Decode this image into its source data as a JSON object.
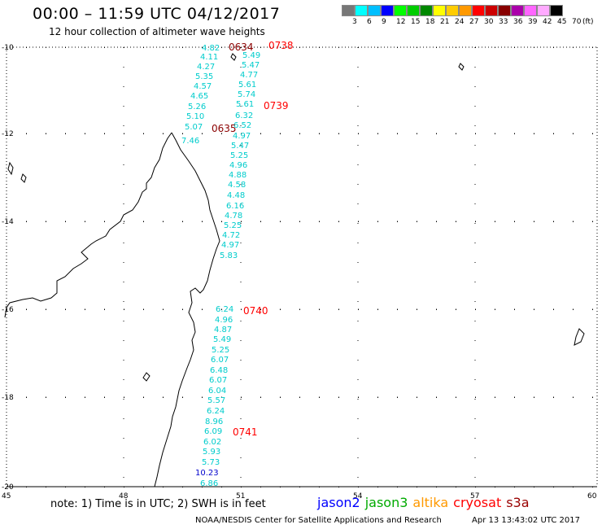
{
  "header": {
    "title": "00:00 – 11:59 UTC 04/12/2017",
    "subtitle": "12 hour collection of altimeter wave heights"
  },
  "legend": {
    "colors": [
      "#777777",
      "#00ffff",
      "#00bfff",
      "#0000ff",
      "#00ff00",
      "#00cc00",
      "#008800",
      "#ffff00",
      "#ffcc00",
      "#ff9900",
      "#ff0000",
      "#cc0000",
      "#880000",
      "#aa00aa",
      "#ff66ff",
      "#ffaaff",
      "#000000"
    ],
    "labels": [
      "3",
      "6",
      "9",
      "12",
      "15",
      "18",
      "21",
      "24",
      "27",
      "30",
      "33",
      "36",
      "39",
      "42",
      "45",
      "70",
      "(ft)"
    ]
  },
  "axes": {
    "x_labels": [
      "45",
      "48",
      "51",
      "54",
      "57",
      "60"
    ],
    "y_labels": [
      "-10",
      "-12",
      "-14",
      "-16",
      "-18",
      "-20"
    ]
  },
  "time_labels": [
    {
      "text": "0634",
      "color": "#8b0000"
    },
    {
      "text": "0738",
      "color": "#ff0000"
    },
    {
      "text": "0739",
      "color": "#ff0000"
    },
    {
      "text": "0635",
      "color": "#8b0000"
    },
    {
      "text": "0740",
      "color": "#ff0000"
    },
    {
      "text": "0741",
      "color": "#ff0000"
    }
  ],
  "track_west": [
    "4.82",
    "4.11",
    "4.27",
    "5.35",
    "4.57",
    "4.65",
    "5.26",
    "5.10",
    "5.07",
    "7.46"
  ],
  "track_east": [
    "5.49",
    "5.47",
    "4.77",
    "5.61",
    "5.74",
    "5.61",
    "6.32",
    "6.52",
    "4.97",
    "5.47",
    "5.25",
    "4.96",
    "4.88",
    "4.58",
    "4.48",
    "6.16",
    "4.78",
    "5.25",
    "4.72",
    "4.97",
    "5.83",
    "6.24",
    "4.96",
    "4.87",
    "5.49",
    "5.25",
    "6.07",
    "6.48",
    "6.07",
    "6.04",
    "5.57",
    "6.24",
    "8.96",
    "6.09",
    "6.02",
    "5.93",
    "5.73",
    "10.23",
    "6.86"
  ],
  "colors": {
    "sw_cyan": "#00cccc",
    "sw_blue": "#0000cc",
    "sw_teal": "#00aadd"
  },
  "footer": {
    "note": "note: 1) Time is in UTC; 2) SWH is in feet",
    "satellites": [
      {
        "name": "jason2",
        "color": "#0000ff"
      },
      {
        "name": "jason3",
        "color": "#00aa00"
      },
      {
        "name": "altika",
        "color": "#ff9900"
      },
      {
        "name": "cryosat",
        "color": "#ff0000"
      },
      {
        "name": "s3a",
        "color": "#990000"
      }
    ],
    "credit": "NOAA/NESDIS Center for Satellite Applications and Research",
    "timestamp": "Apr 13 13:43:02 UTC 2017"
  }
}
